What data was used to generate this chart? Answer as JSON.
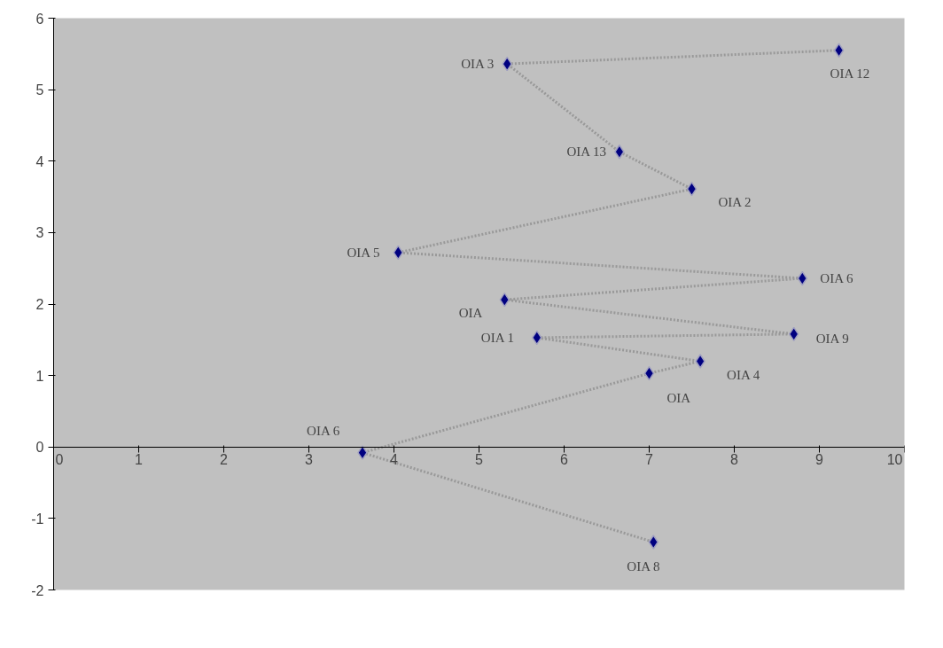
{
  "chart_data": {
    "type": "scatter",
    "x": [
      9.23,
      5.33,
      6.65,
      7.5,
      4.05,
      8.8,
      5.3,
      8.7,
      5.68,
      7.6,
      7.0,
      3.63,
      7.05
    ],
    "series": [
      {
        "type": "line",
        "color": "#999999",
        "line_style": "dotted",
        "marker": "none",
        "values": [
          5.55,
          5.36,
          4.13,
          3.61,
          2.72,
          2.36,
          2.06,
          1.58,
          1.53,
          1.2,
          1.03,
          -0.08,
          -1.33
        ]
      },
      {
        "type": "scatter",
        "color": "#000080",
        "values": [
          5.55,
          5.36,
          4.13,
          3.61,
          2.72,
          2.36,
          2.06,
          1.58,
          1.53,
          1.2,
          1.03,
          -0.08,
          -1.33
        ]
      }
    ],
    "line_style": "none",
    "marker": "diamond",
    "xlim": [
      0,
      10
    ],
    "ylim": [
      -2,
      6
    ],
    "xticks": [
      0,
      1,
      2,
      3,
      4,
      5,
      6,
      7,
      8,
      9,
      10
    ],
    "yticks": [
      -2,
      -1,
      0,
      1,
      2,
      3,
      4,
      5,
      6
    ],
    "grid": false,
    "annotations": [
      {
        "text": "OIA 12",
        "x": 9.23,
        "y": 5.55
      },
      {
        "text": "OIA 3",
        "x": 5.33,
        "y": 5.36
      },
      {
        "text": "OIA 13",
        "x": 6.65,
        "y": 4.13
      },
      {
        "text": "OIA 2",
        "x": 7.5,
        "y": 3.61
      },
      {
        "text": "OIA 5",
        "x": 4.05,
        "y": 2.72
      },
      {
        "text": "OIA 6",
        "x": 8.8,
        "y": 2.36
      },
      {
        "text": "OIA",
        "x": 5.3,
        "y": 2.06
      },
      {
        "text": "OIA 9",
        "x": 8.7,
        "y": 1.58
      },
      {
        "text": "OIA 1",
        "x": 5.68,
        "y": 1.53
      },
      {
        "text": "OIA 4",
        "x": 7.6,
        "y": 1.2
      },
      {
        "text": "OIA",
        "x": 7.0,
        "y": 1.03
      },
      {
        "text": "OIA 6",
        "x": 3.63,
        "y": -0.08
      },
      {
        "text": "OIA 8",
        "x": 7.05,
        "y": -1.33
      }
    ]
  }
}
